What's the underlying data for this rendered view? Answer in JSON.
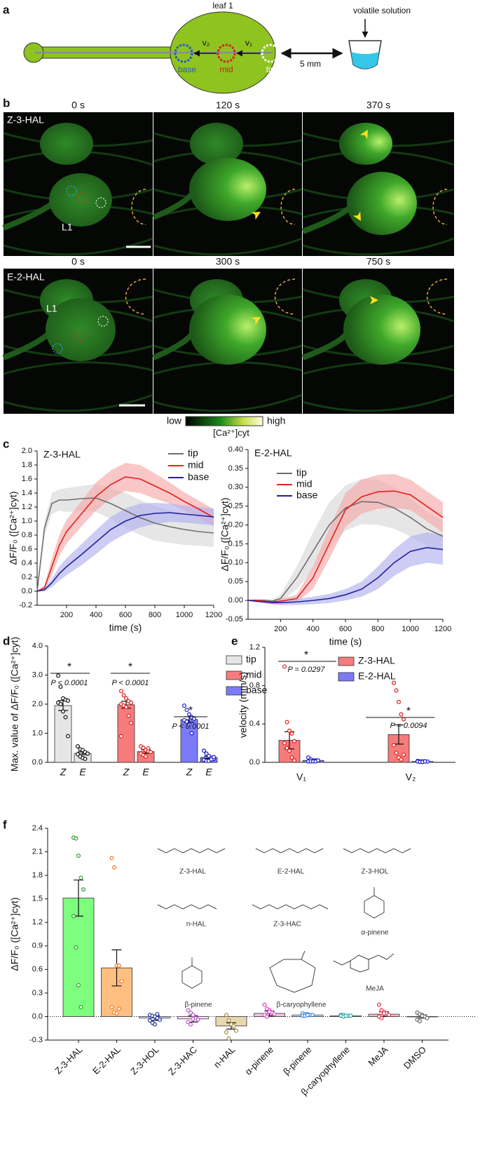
{
  "panel_letters": [
    "a",
    "b",
    "c",
    "d",
    "e",
    "f"
  ],
  "diagram": {
    "leaf": "leaf 1",
    "source": "volatile solution",
    "v1": "v₁",
    "v2": "v₂",
    "base": "base",
    "mid": "mid",
    "tip": "tip",
    "distance": "5 mm"
  },
  "micrographs": {
    "times": [
      [
        "0 s",
        "120 s",
        "370 s"
      ],
      [
        "0 s",
        "300 s",
        "750 s"
      ]
    ],
    "rows": [
      "Z-3-HAL",
      "E-2-HAL"
    ],
    "leaf_label": "L1",
    "colorbar": {
      "low": "low",
      "high": "high",
      "label": "[Ca²⁺]cyt"
    }
  },
  "chart_data": [
    {
      "type": "line",
      "title": "Z-3-HAL",
      "xlabel": "time (s)",
      "ylabel": "ΔF/F₀ ([Ca²⁺]cyt)",
      "x": [
        0,
        50,
        100,
        150,
        200,
        300,
        400,
        500,
        600,
        700,
        800,
        900,
        1000,
        1100,
        1200
      ],
      "xlim": [
        0,
        1200
      ],
      "xticks": [
        200,
        400,
        600,
        800,
        1000,
        1200
      ],
      "ylim": [
        -0.2,
        2.0
      ],
      "yticks": [
        -0.2,
        {
          "value": 0,
          "label": "0.0"
        },
        0.2,
        0.4,
        0.6,
        0.8,
        {
          "value": 1,
          "label": "1.0"
        },
        1.2,
        1.4,
        1.6,
        1.8,
        {
          "value": 2,
          "label": "2.0"
        }
      ],
      "series": [
        {
          "name": "tip",
          "color": "#6e6e6e",
          "band_color": "#d9d9d9",
          "values": [
            0,
            0.9,
            1.25,
            1.3,
            1.3,
            1.32,
            1.33,
            1.25,
            1.15,
            1.05,
            0.97,
            0.92,
            0.88,
            0.85,
            0.83
          ],
          "errors": [
            0,
            0.1,
            0.15,
            0.15,
            0.17,
            0.18,
            0.2,
            0.22,
            0.25,
            0.25,
            0.25,
            0.23,
            0.22,
            0.2,
            0.2
          ]
        },
        {
          "name": "mid",
          "color": "#e3221c",
          "band_color": "#f6a9a9",
          "values": [
            0,
            0.05,
            0.35,
            0.65,
            0.85,
            1.1,
            1.35,
            1.52,
            1.63,
            1.6,
            1.5,
            1.4,
            1.28,
            1.17,
            1.05
          ],
          "errors": [
            0,
            0.03,
            0.12,
            0.15,
            0.17,
            0.18,
            0.2,
            0.2,
            0.2,
            0.2,
            0.18,
            0.15,
            0.13,
            0.12,
            0.12
          ]
        },
        {
          "name": "base",
          "color": "#2020a0",
          "band_color": "#b0b0ee",
          "values": [
            0,
            0.02,
            0.12,
            0.25,
            0.35,
            0.52,
            0.7,
            0.88,
            1.0,
            1.08,
            1.11,
            1.12,
            1.1,
            1.08,
            1.06
          ],
          "errors": [
            0,
            0.02,
            0.06,
            0.1,
            0.12,
            0.15,
            0.17,
            0.18,
            0.18,
            0.17,
            0.15,
            0.13,
            0.12,
            0.12,
            0.12
          ]
        }
      ]
    },
    {
      "type": "line",
      "title": "E-2-HAL",
      "xlabel": "time (s)",
      "ylabel": "ΔF/F₀ ([Ca²⁺]cyt)",
      "x": [
        0,
        50,
        100,
        150,
        200,
        300,
        400,
        500,
        600,
        700,
        800,
        900,
        1000,
        1100,
        1200
      ],
      "xlim": [
        0,
        1200
      ],
      "xticks": [
        200,
        400,
        600,
        800,
        1000,
        1200
      ],
      "ylim": [
        -0.05,
        0.4
      ],
      "yticks": [
        -0.05,
        {
          "value": 0,
          "label": "0.00"
        },
        0.05,
        {
          "value": 0.1,
          "label": "0.10"
        },
        0.15,
        {
          "value": 0.2,
          "label": "0.20"
        },
        0.25,
        {
          "value": 0.3,
          "label": "0.30"
        },
        0.35,
        {
          "value": 0.4,
          "label": "0.40"
        }
      ],
      "series": [
        {
          "name": "tip",
          "color": "#6e6e6e",
          "band_color": "#d9d9d9",
          "values": [
            0,
            0,
            0,
            -0.002,
            0.005,
            0.06,
            0.13,
            0.2,
            0.245,
            0.262,
            0.26,
            0.245,
            0.22,
            0.19,
            0.17
          ],
          "errors": [
            0,
            0.003,
            0.004,
            0.005,
            0.01,
            0.03,
            0.05,
            0.06,
            0.06,
            0.06,
            0.06,
            0.055,
            0.05,
            0.045,
            0.04
          ]
        },
        {
          "name": "mid",
          "color": "#e3221c",
          "band_color": "#f6a9a9",
          "values": [
            0,
            0,
            -0.002,
            -0.004,
            -0.002,
            0.005,
            0.06,
            0.15,
            0.24,
            0.275,
            0.288,
            0.29,
            0.28,
            0.25,
            0.22
          ],
          "errors": [
            0,
            0.003,
            0.004,
            0.005,
            0.006,
            0.01,
            0.03,
            0.04,
            0.045,
            0.045,
            0.045,
            0.045,
            0.04,
            0.04,
            0.04
          ]
        },
        {
          "name": "base",
          "color": "#2020a0",
          "band_color": "#b0b0ee",
          "values": [
            0,
            -0.002,
            -0.004,
            -0.006,
            -0.006,
            -0.004,
            0,
            0.005,
            0.015,
            0.03,
            0.06,
            0.1,
            0.13,
            0.14,
            0.135
          ],
          "errors": [
            0,
            0.003,
            0.004,
            0.005,
            0.006,
            0.008,
            0.01,
            0.012,
            0.015,
            0.02,
            0.03,
            0.035,
            0.04,
            0.04,
            0.04
          ]
        }
      ]
    },
    {
      "type": "bar",
      "ylabel": "Max. value of ΔF/F₀ ([Ca²⁺]cyt)",
      "group_labels": [
        "Z",
        "E"
      ],
      "ylim": [
        0,
        4.0
      ],
      "yticks": [
        {
          "value": 0,
          "label": "0.0"
        },
        {
          "value": 1,
          "label": "1.0"
        },
        {
          "value": 2,
          "label": "2.0"
        },
        {
          "value": 3,
          "label": "3.0"
        },
        {
          "value": 4,
          "label": "4.0"
        }
      ],
      "series": [
        {
          "name": "tip",
          "color": "#e6e6e6",
          "point_color": "#111111",
          "values": [
            1.95,
            0.31
          ],
          "errors": [
            0.17,
            0.05
          ],
          "points": [
            [
              2.98,
              2.6,
              2.2,
              2.15,
              2.12,
              2.05,
              2.0,
              1.75,
              1.55,
              0.9
            ],
            [
              0.55,
              0.45,
              0.42,
              0.35,
              0.3,
              0.28,
              0.2,
              0.15,
              0.12,
              0.3
            ]
          ]
        },
        {
          "name": "mid",
          "color": "#f77b7b",
          "point_color": "#e01818",
          "values": [
            1.98,
            0.37
          ],
          "errors": [
            0.12,
            0.06
          ],
          "points": [
            [
              2.45,
              2.3,
              2.2,
              2.1,
              2.05,
              2.0,
              1.95,
              1.9,
              1.6,
              1.35,
              0.9
            ],
            [
              0.55,
              0.5,
              0.42,
              0.38,
              0.35,
              0.3,
              0.25,
              0.2,
              0.48
            ]
          ]
        },
        {
          "name": "base",
          "color": "#7b7bf7",
          "point_color": "#1818c8",
          "values": [
            1.47,
            0.17
          ],
          "errors": [
            0.1,
            0.04
          ],
          "points": [
            [
              1.95,
              1.8,
              1.65,
              1.55,
              1.5,
              1.45,
              1.4,
              1.3,
              1.0
            ],
            [
              0.4,
              0.3,
              0.22,
              0.15,
              0.12,
              0.08,
              0.05,
              0.05,
              0.1,
              0.18
            ]
          ]
        }
      ],
      "annotations": [
        {
          "star": "*",
          "text": "P < 0.0001"
        },
        {
          "star": "*",
          "text": "P < 0.0001"
        },
        {
          "star": "*",
          "text": "P < 0.0001"
        }
      ]
    },
    {
      "type": "bar",
      "ylabel": "velocity (mm/s)",
      "categories": [
        "V₁",
        "V₂"
      ],
      "ylim": [
        0,
        1.2
      ],
      "yticks": [
        {
          "value": 0,
          "label": "0.0"
        },
        0.4,
        0.8,
        1.2
      ],
      "series": [
        {
          "name": "Z-3-HAL",
          "color": "#f77b7b",
          "point_color": "#e01818",
          "values": [
            0.23,
            0.29
          ],
          "errors": [
            0.09,
            0.1
          ],
          "points": [
            [
              1.0,
              0.42,
              0.33,
              0.3,
              0.22,
              0.2,
              0.15,
              0.12,
              0.05,
              0.02
            ],
            [
              0.83,
              0.75,
              0.63,
              0.5,
              0.45,
              0.18,
              0.1,
              0.05,
              0.03,
              0.08
            ]
          ]
        },
        {
          "name": "E-2-HAL",
          "color": "#7b7bf7",
          "point_color": "#1818c8",
          "values": [
            0.02,
            0.01
          ],
          "errors": [
            0.006,
            0.003
          ],
          "points": [
            [
              0.05,
              0.03,
              0.02,
              0.02,
              0.02,
              0.01,
              0.01,
              0.01,
              0.01,
              0.02
            ],
            [
              0.015,
              0.01,
              0.01,
              0.01,
              0.008,
              0.008,
              0.005,
              0.005,
              0.01
            ]
          ]
        }
      ],
      "annotations": [
        {
          "star": "*",
          "text": "P = 0.0297"
        },
        {
          "star": "*",
          "text": "P = 0.0094"
        }
      ]
    },
    {
      "type": "bar",
      "ylabel": "ΔF/F₀ ([Ca²⁺]cyt)",
      "categories": [
        "Z-3-HAL",
        "E-2-HAL",
        "Z-3-HOL",
        "Z-3-HAC",
        "n-HAL",
        "α-pinene",
        "β-pinene",
        "β-caryophyllene",
        "MeJA",
        "DMSO"
      ],
      "values": [
        1.51,
        0.62,
        -0.02,
        -0.03,
        -0.12,
        0.04,
        0.02,
        0.01,
        0.03,
        0.0
      ],
      "errors": [
        0.23,
        0.23,
        0.03,
        0.04,
        0.04,
        0.03,
        0.01,
        0.005,
        0.03,
        0.02
      ],
      "colors": [
        "#7dff7d",
        "#ffbf80",
        "#dde3ff",
        "#fde0ff",
        "#e8d8b0",
        "#ffc0ec",
        "#d6e8ff",
        "#cdf3f3",
        "#ffb8c4",
        "#e6e6e6"
      ],
      "point_colors": [
        "#2a9d2a",
        "#ef7a22",
        "#1a2fa0",
        "#c24fd0",
        "#a08a40",
        "#e040c0",
        "#3a7fd8",
        "#21a0a0",
        "#e0304a",
        "#666666"
      ],
      "points": [
        [
          2.28,
          2.27,
          2.05,
          1.77,
          1.62,
          1.28,
          0.88,
          0.4,
          0.12
        ],
        [
          2.02,
          1.9,
          0.65,
          0.65,
          0.45,
          0.12,
          0.05,
          0.04,
          0.1
        ],
        [
          0.02,
          0.01,
          0.0,
          -0.02,
          -0.04,
          -0.05,
          -0.08,
          -0.1,
          0.03
        ],
        [
          0.08,
          0.05,
          0.02,
          -0.02,
          -0.04,
          -0.07,
          -0.1,
          -0.03
        ],
        [
          0.02,
          -0.05,
          -0.1,
          -0.12,
          -0.18,
          -0.2,
          -0.28
        ],
        [
          0.15,
          0.1,
          0.08,
          0.05,
          0.03,
          0.02,
          0.0,
          0.06
        ],
        [
          0.04,
          0.03,
          0.03,
          0.02,
          0.02,
          0.01,
          0.01,
          0.02
        ],
        [
          0.02,
          0.02,
          0.01,
          0.01,
          0.01,
          0.01,
          0.0,
          0.01
        ],
        [
          0.15,
          0.08,
          0.06,
          0.04,
          0.02,
          0.0,
          -0.02,
          0.04
        ],
        [
          0.05,
          0.03,
          0.02,
          0.0,
          -0.02,
          -0.04,
          -0.06,
          0.01
        ]
      ],
      "ylim": [
        -0.3,
        2.4
      ],
      "yticks": [
        -0.3,
        {
          "value": 0,
          "label": "0.0"
        },
        0.3,
        0.6,
        0.9,
        1.2,
        1.5,
        1.8,
        2.1,
        2.4
      ],
      "structures": [
        "Z-3-HAL",
        "E-2-HAL",
        "Z-3-HOL",
        "n-HAL",
        "Z-3-HAC",
        "α-pinene",
        "β-pinene",
        "β-caryophyllene",
        "MeJA"
      ]
    }
  ]
}
